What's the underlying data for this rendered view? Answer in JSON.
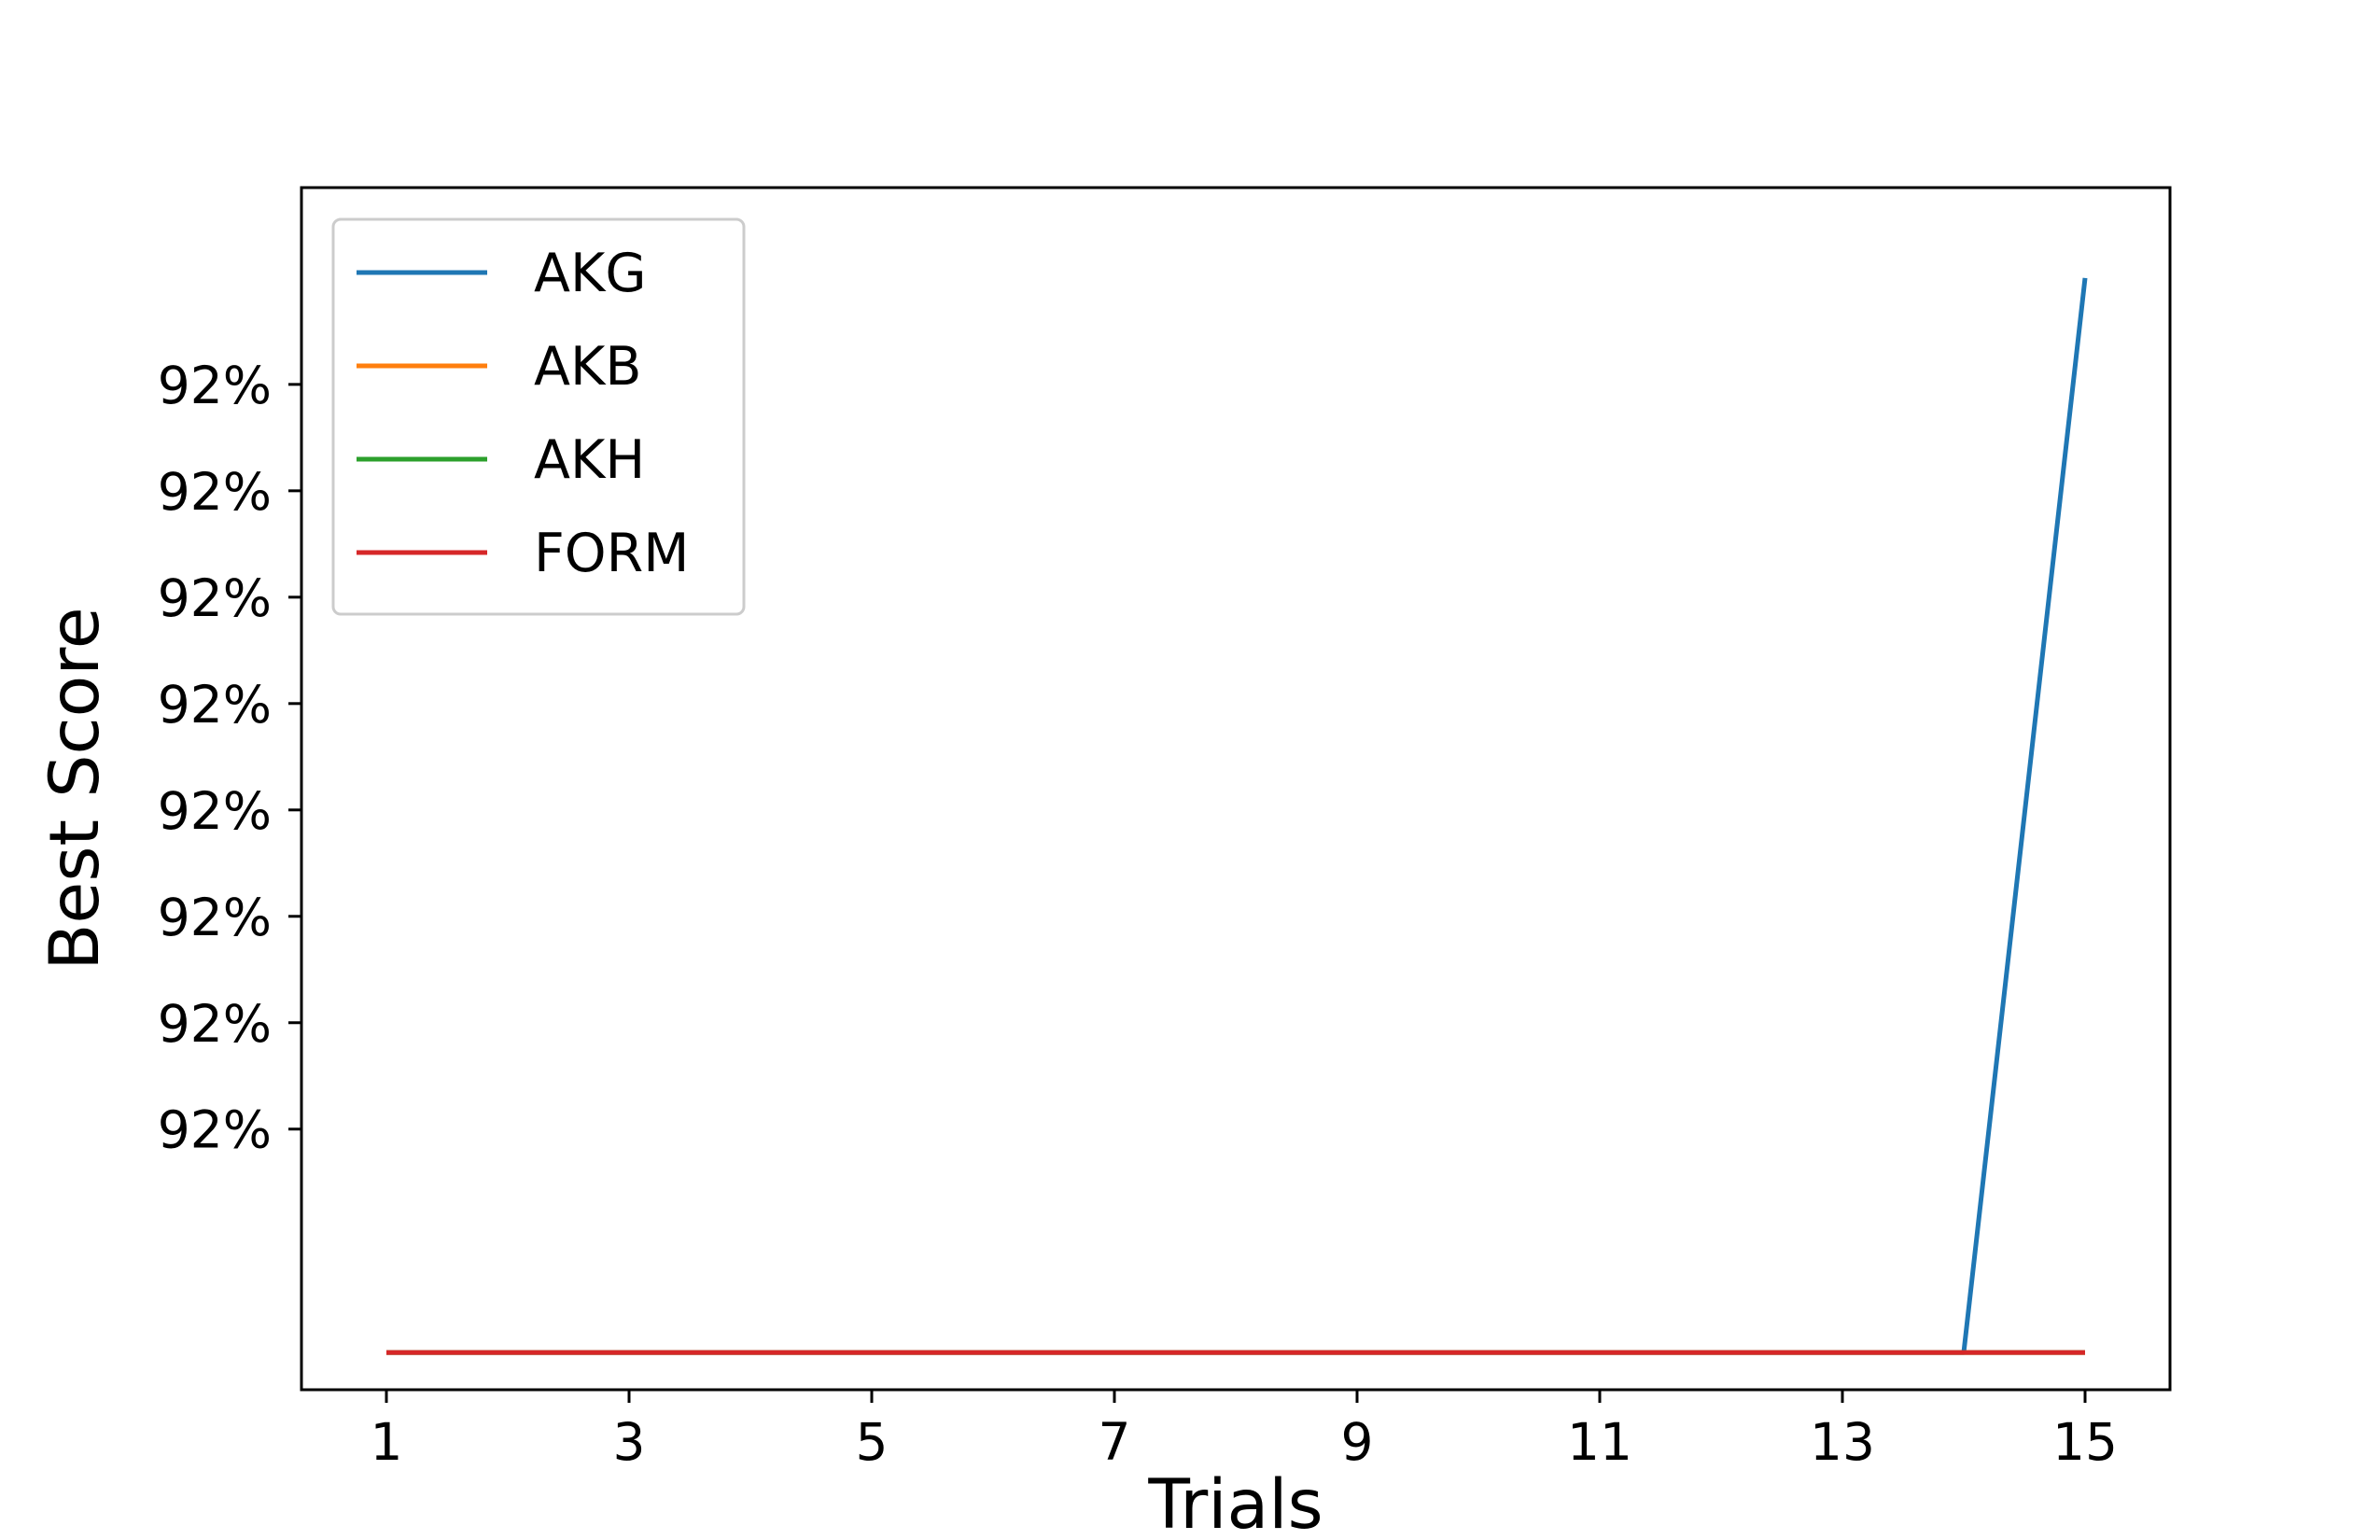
{
  "chart_data": {
    "type": "line",
    "title": "",
    "xlabel": "Trials",
    "ylabel": "Best Score",
    "x": [
      1,
      2,
      3,
      4,
      5,
      6,
      7,
      8,
      9,
      10,
      11,
      12,
      13,
      14,
      15
    ],
    "xticks": [
      1,
      3,
      5,
      7,
      9,
      11,
      13,
      15
    ],
    "xlim": [
      0.3,
      15.7
    ],
    "ytick_labels": [
      "92%",
      "92%",
      "92%",
      "92%",
      "92%",
      "92%",
      "92%",
      "92%"
    ],
    "yticks": [
      0.92,
      0.9202,
      0.9204,
      0.9206,
      0.9208,
      0.921,
      0.9212,
      0.9214
    ],
    "ylim": [
      0.91951,
      0.92177
    ],
    "grid": false,
    "legend_position": "top-left",
    "series": [
      {
        "name": "AKG",
        "color": "#1f77b4",
        "values": [
          0.91958,
          0.91958,
          0.91958,
          0.91958,
          0.91958,
          0.91958,
          0.91958,
          0.91958,
          0.91958,
          0.91958,
          0.91958,
          0.91958,
          0.91958,
          0.91958,
          0.9216
        ]
      },
      {
        "name": "AKB",
        "color": "#ff7f0e",
        "values": [
          0.91958,
          0.91958,
          0.91958,
          0.91958,
          0.91958,
          0.91958,
          0.91958,
          0.91958,
          0.91958,
          0.91958,
          0.91958,
          0.91958,
          0.91958,
          0.91958,
          0.91958
        ]
      },
      {
        "name": "AKH",
        "color": "#2ca02c",
        "values": [
          0.91958,
          0.91958,
          0.91958,
          0.91958,
          0.91958,
          0.91958,
          0.91958,
          0.91958,
          0.91958,
          0.91958,
          0.91958,
          0.91958,
          0.91958,
          0.91958,
          0.91958
        ]
      },
      {
        "name": "FORM",
        "color": "#d62728",
        "values": [
          0.91958,
          0.91958,
          0.91958,
          0.91958,
          0.91958,
          0.91958,
          0.91958,
          0.91958,
          0.91958,
          0.91958,
          0.91958,
          0.91958,
          0.91958,
          0.91958,
          0.91958
        ]
      }
    ]
  }
}
